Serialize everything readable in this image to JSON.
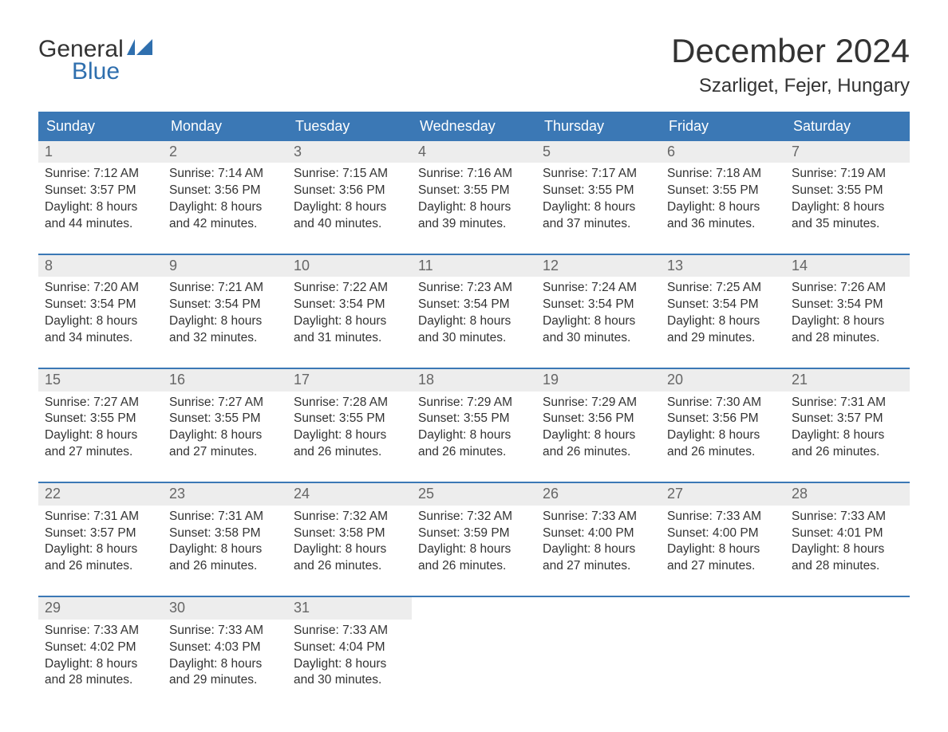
{
  "logo": {
    "word1": "General",
    "word2": "Blue"
  },
  "title": "December 2024",
  "location": "Szarliget, Fejer, Hungary",
  "colors": {
    "header_bg": "#3b78b5",
    "header_text": "#ffffff",
    "daynum_bg": "#ededed",
    "daynum_text": "#666666",
    "body_text": "#333333",
    "rule": "#3b78b5",
    "logo_accent": "#2f6fae"
  },
  "day_names": [
    "Sunday",
    "Monday",
    "Tuesday",
    "Wednesday",
    "Thursday",
    "Friday",
    "Saturday"
  ],
  "weeks": [
    [
      {
        "n": "1",
        "sunrise": "Sunrise: 7:12 AM",
        "sunset": "Sunset: 3:57 PM",
        "day1": "Daylight: 8 hours",
        "day2": "and 44 minutes."
      },
      {
        "n": "2",
        "sunrise": "Sunrise: 7:14 AM",
        "sunset": "Sunset: 3:56 PM",
        "day1": "Daylight: 8 hours",
        "day2": "and 42 minutes."
      },
      {
        "n": "3",
        "sunrise": "Sunrise: 7:15 AM",
        "sunset": "Sunset: 3:56 PM",
        "day1": "Daylight: 8 hours",
        "day2": "and 40 minutes."
      },
      {
        "n": "4",
        "sunrise": "Sunrise: 7:16 AM",
        "sunset": "Sunset: 3:55 PM",
        "day1": "Daylight: 8 hours",
        "day2": "and 39 minutes."
      },
      {
        "n": "5",
        "sunrise": "Sunrise: 7:17 AM",
        "sunset": "Sunset: 3:55 PM",
        "day1": "Daylight: 8 hours",
        "day2": "and 37 minutes."
      },
      {
        "n": "6",
        "sunrise": "Sunrise: 7:18 AM",
        "sunset": "Sunset: 3:55 PM",
        "day1": "Daylight: 8 hours",
        "day2": "and 36 minutes."
      },
      {
        "n": "7",
        "sunrise": "Sunrise: 7:19 AM",
        "sunset": "Sunset: 3:55 PM",
        "day1": "Daylight: 8 hours",
        "day2": "and 35 minutes."
      }
    ],
    [
      {
        "n": "8",
        "sunrise": "Sunrise: 7:20 AM",
        "sunset": "Sunset: 3:54 PM",
        "day1": "Daylight: 8 hours",
        "day2": "and 34 minutes."
      },
      {
        "n": "9",
        "sunrise": "Sunrise: 7:21 AM",
        "sunset": "Sunset: 3:54 PM",
        "day1": "Daylight: 8 hours",
        "day2": "and 32 minutes."
      },
      {
        "n": "10",
        "sunrise": "Sunrise: 7:22 AM",
        "sunset": "Sunset: 3:54 PM",
        "day1": "Daylight: 8 hours",
        "day2": "and 31 minutes."
      },
      {
        "n": "11",
        "sunrise": "Sunrise: 7:23 AM",
        "sunset": "Sunset: 3:54 PM",
        "day1": "Daylight: 8 hours",
        "day2": "and 30 minutes."
      },
      {
        "n": "12",
        "sunrise": "Sunrise: 7:24 AM",
        "sunset": "Sunset: 3:54 PM",
        "day1": "Daylight: 8 hours",
        "day2": "and 30 minutes."
      },
      {
        "n": "13",
        "sunrise": "Sunrise: 7:25 AM",
        "sunset": "Sunset: 3:54 PM",
        "day1": "Daylight: 8 hours",
        "day2": "and 29 minutes."
      },
      {
        "n": "14",
        "sunrise": "Sunrise: 7:26 AM",
        "sunset": "Sunset: 3:54 PM",
        "day1": "Daylight: 8 hours",
        "day2": "and 28 minutes."
      }
    ],
    [
      {
        "n": "15",
        "sunrise": "Sunrise: 7:27 AM",
        "sunset": "Sunset: 3:55 PM",
        "day1": "Daylight: 8 hours",
        "day2": "and 27 minutes."
      },
      {
        "n": "16",
        "sunrise": "Sunrise: 7:27 AM",
        "sunset": "Sunset: 3:55 PM",
        "day1": "Daylight: 8 hours",
        "day2": "and 27 minutes."
      },
      {
        "n": "17",
        "sunrise": "Sunrise: 7:28 AM",
        "sunset": "Sunset: 3:55 PM",
        "day1": "Daylight: 8 hours",
        "day2": "and 26 minutes."
      },
      {
        "n": "18",
        "sunrise": "Sunrise: 7:29 AM",
        "sunset": "Sunset: 3:55 PM",
        "day1": "Daylight: 8 hours",
        "day2": "and 26 minutes."
      },
      {
        "n": "19",
        "sunrise": "Sunrise: 7:29 AM",
        "sunset": "Sunset: 3:56 PM",
        "day1": "Daylight: 8 hours",
        "day2": "and 26 minutes."
      },
      {
        "n": "20",
        "sunrise": "Sunrise: 7:30 AM",
        "sunset": "Sunset: 3:56 PM",
        "day1": "Daylight: 8 hours",
        "day2": "and 26 minutes."
      },
      {
        "n": "21",
        "sunrise": "Sunrise: 7:31 AM",
        "sunset": "Sunset: 3:57 PM",
        "day1": "Daylight: 8 hours",
        "day2": "and 26 minutes."
      }
    ],
    [
      {
        "n": "22",
        "sunrise": "Sunrise: 7:31 AM",
        "sunset": "Sunset: 3:57 PM",
        "day1": "Daylight: 8 hours",
        "day2": "and 26 minutes."
      },
      {
        "n": "23",
        "sunrise": "Sunrise: 7:31 AM",
        "sunset": "Sunset: 3:58 PM",
        "day1": "Daylight: 8 hours",
        "day2": "and 26 minutes."
      },
      {
        "n": "24",
        "sunrise": "Sunrise: 7:32 AM",
        "sunset": "Sunset: 3:58 PM",
        "day1": "Daylight: 8 hours",
        "day2": "and 26 minutes."
      },
      {
        "n": "25",
        "sunrise": "Sunrise: 7:32 AM",
        "sunset": "Sunset: 3:59 PM",
        "day1": "Daylight: 8 hours",
        "day2": "and 26 minutes."
      },
      {
        "n": "26",
        "sunrise": "Sunrise: 7:33 AM",
        "sunset": "Sunset: 4:00 PM",
        "day1": "Daylight: 8 hours",
        "day2": "and 27 minutes."
      },
      {
        "n": "27",
        "sunrise": "Sunrise: 7:33 AM",
        "sunset": "Sunset: 4:00 PM",
        "day1": "Daylight: 8 hours",
        "day2": "and 27 minutes."
      },
      {
        "n": "28",
        "sunrise": "Sunrise: 7:33 AM",
        "sunset": "Sunset: 4:01 PM",
        "day1": "Daylight: 8 hours",
        "day2": "and 28 minutes."
      }
    ],
    [
      {
        "n": "29",
        "sunrise": "Sunrise: 7:33 AM",
        "sunset": "Sunset: 4:02 PM",
        "day1": "Daylight: 8 hours",
        "day2": "and 28 minutes."
      },
      {
        "n": "30",
        "sunrise": "Sunrise: 7:33 AM",
        "sunset": "Sunset: 4:03 PM",
        "day1": "Daylight: 8 hours",
        "day2": "and 29 minutes."
      },
      {
        "n": "31",
        "sunrise": "Sunrise: 7:33 AM",
        "sunset": "Sunset: 4:04 PM",
        "day1": "Daylight: 8 hours",
        "day2": "and 30 minutes."
      },
      null,
      null,
      null,
      null
    ]
  ]
}
